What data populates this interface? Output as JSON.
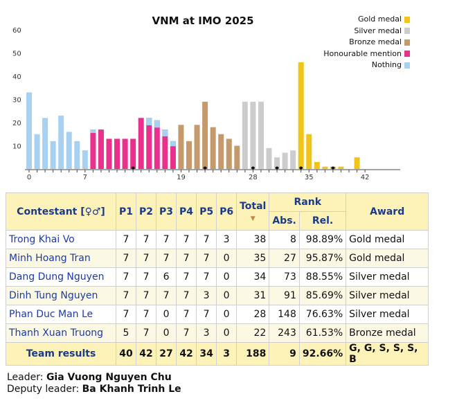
{
  "chart_data": {
    "type": "bar",
    "title": "VNM at IMO 2025",
    "ylim": [
      0,
      65
    ],
    "yticks": [
      10,
      20,
      30,
      40,
      50,
      60
    ],
    "xticks": [
      0,
      7,
      19,
      28,
      35,
      42
    ],
    "x": [
      0,
      1,
      2,
      3,
      4,
      5,
      6,
      7,
      8,
      9,
      10,
      11,
      12,
      13,
      14,
      15,
      16,
      17,
      18,
      19,
      20,
      21,
      22,
      23,
      24,
      25,
      26,
      27,
      28,
      29,
      30,
      31,
      32,
      33,
      34,
      35,
      36,
      37,
      38,
      39,
      40,
      41,
      42
    ],
    "values": [
      33,
      15,
      22,
      12,
      23,
      16,
      12,
      8,
      17,
      17,
      13,
      13,
      13,
      13,
      22,
      22,
      21,
      17,
      12,
      19,
      12,
      19,
      29,
      18,
      15,
      13,
      10,
      29,
      29,
      29,
      9,
      5,
      7,
      8,
      46,
      15,
      3,
      1,
      1,
      1,
      0,
      5,
      0
    ],
    "colors": [
      "#a8d0f0",
      "#a8d0f0",
      "#a8d0f0",
      "#a8d0f0",
      "#a8d0f0",
      "#a8d0f0",
      "#a8d0f0",
      "#a8d0f0",
      "#e8308c",
      "#e8308c",
      "#e8308c",
      "#e8308c",
      "#e8308c",
      "#e8308c",
      "#e8308c",
      "#e8308c",
      "#e8308c",
      "#e8308c",
      "#e8308c",
      "#c49a6c",
      "#c49a6c",
      "#c49a6c",
      "#c49a6c",
      "#c49a6c",
      "#c49a6c",
      "#c49a6c",
      "#c49a6c",
      "#cccccc",
      "#cccccc",
      "#cccccc",
      "#cccccc",
      "#cccccc",
      "#cccccc",
      "#cccccc",
      "#f0c418",
      "#f0c418",
      "#f0c418",
      "#f0c418",
      "#f0c418",
      "#f0c418",
      "#f0c418",
      "#f0c418",
      "#f0c418"
    ],
    "overlay_nothing": [
      0,
      0,
      0,
      0,
      0,
      0,
      0,
      1,
      5,
      0,
      0,
      0,
      0,
      0,
      0,
      19,
      19,
      17,
      11,
      0,
      0,
      0,
      0,
      0,
      0,
      0,
      0,
      0,
      0,
      0,
      0,
      0,
      0,
      0,
      0,
      0,
      0,
      0,
      0,
      0,
      0,
      0,
      0
    ],
    "markers_at": [
      13,
      22,
      28,
      31,
      34,
      38
    ]
  },
  "legend": [
    {
      "label": "Gold medal",
      "color": "#f0c418"
    },
    {
      "label": "Silver medal",
      "color": "#cccccc"
    },
    {
      "label": "Bronze medal",
      "color": "#c49a6c"
    },
    {
      "label": "Honourable mention",
      "color": "#e8308c"
    },
    {
      "label": "Nothing",
      "color": "#a8d0f0"
    }
  ],
  "table": {
    "headers": {
      "contestant": "Contestant [♀♂]",
      "p1": "P1",
      "p2": "P2",
      "p3": "P3",
      "p4": "P4",
      "p5": "P5",
      "p6": "P6",
      "total": "Total",
      "rank": "Rank",
      "abs": "Abs.",
      "rel": "Rel.",
      "award": "Award"
    },
    "rows": [
      {
        "name": "Trong Khai Vo",
        "p": [
          "7",
          "7",
          "7",
          "7",
          "7",
          "3"
        ],
        "total": "38",
        "abs": "8",
        "rel": "98.89%",
        "award": "Gold medal"
      },
      {
        "name": "Minh Hoang Tran",
        "p": [
          "7",
          "7",
          "7",
          "7",
          "7",
          "0"
        ],
        "total": "35",
        "abs": "27",
        "rel": "95.87%",
        "award": "Gold medal"
      },
      {
        "name": "Dang Dung Nguyen",
        "p": [
          "7",
          "7",
          "6",
          "7",
          "7",
          "0"
        ],
        "total": "34",
        "abs": "73",
        "rel": "88.55%",
        "award": "Silver medal"
      },
      {
        "name": "Dinh Tung Nguyen",
        "p": [
          "7",
          "7",
          "7",
          "7",
          "3",
          "0"
        ],
        "total": "31",
        "abs": "91",
        "rel": "85.69%",
        "award": "Silver medal"
      },
      {
        "name": "Phan Duc Man Le",
        "p": [
          "7",
          "7",
          "0",
          "7",
          "7",
          "0"
        ],
        "total": "28",
        "abs": "148",
        "rel": "76.63%",
        "award": "Silver medal"
      },
      {
        "name": "Thanh Xuan Truong",
        "p": [
          "5",
          "7",
          "0",
          "7",
          "3",
          "0"
        ],
        "total": "22",
        "abs": "243",
        "rel": "61.53%",
        "award": "Bronze medal"
      }
    ],
    "team": {
      "label": "Team results",
      "p": [
        "40",
        "42",
        "27",
        "42",
        "34",
        "3"
      ],
      "total": "188",
      "abs": "9",
      "rel": "92.66%",
      "award": "G, G, S, S, S, B"
    }
  },
  "footer": {
    "leader_label": "Leader:",
    "leader": "Gia Vuong Nguyen Chu",
    "deputy_label": "Deputy leader:",
    "deputy": "Ba Khanh Trinh Le"
  }
}
